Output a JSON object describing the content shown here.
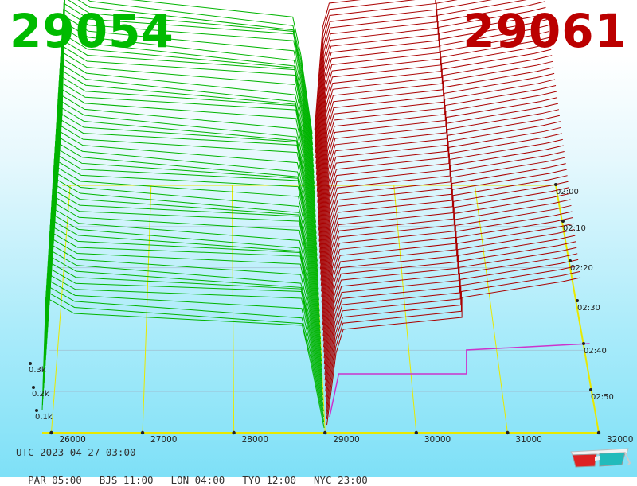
{
  "header": {
    "bid_price": "29054",
    "ask_price": "29061",
    "bid_color": "#00bb00",
    "ask_color": "#bb0000"
  },
  "footer": {
    "utc_label": "UTC 2023-04-27 03:00",
    "zones": [
      {
        "label": "PAR 05:00"
      },
      {
        "label": "BJS 11:00"
      },
      {
        "label": "LON 04:00"
      },
      {
        "label": "TYO 12:00"
      },
      {
        "label": "NYC 23:00"
      }
    ]
  },
  "icons": {
    "glasses": "3d-glasses-icon"
  },
  "chart_data": {
    "type": "area",
    "view": "3d-depth",
    "x_ticks": [
      "26000",
      "27000",
      "28000",
      "29000",
      "30000",
      "31000",
      "32000"
    ],
    "x_range": [
      25900,
      32000
    ],
    "y_ticks": [
      "0.1k",
      "0.2k",
      "0.3k"
    ],
    "time_ticks": [
      "02:00",
      "02:10",
      "02:20",
      "02:30",
      "02:40",
      "02:50"
    ],
    "grid": true,
    "series": [
      {
        "color": "#00b400",
        "side": "bid"
      },
      {
        "color": "#aa0000",
        "side": "ask"
      }
    ]
  }
}
